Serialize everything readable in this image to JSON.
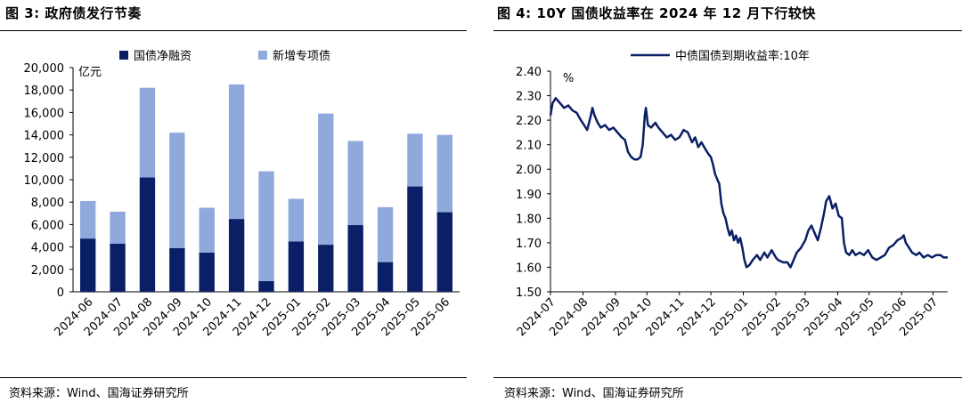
{
  "left_panel": {
    "title": "图 3:  政府债发行节奏",
    "source": "资料来源：Wind、国海证券研究所"
  },
  "right_panel": {
    "title": "图 4:  10Y 国债收益率在 2024 年 12 月下行较快",
    "source": "资料来源：Wind、国海证券研究所"
  },
  "colors": {
    "dark_navy": "#0a1f66",
    "light_blue": "#8fa9dd",
    "line": "#0a1f66"
  },
  "chart_data": [
    {
      "type": "bar",
      "stacked": true,
      "unit_label": "亿元",
      "ylim": [
        0,
        20000
      ],
      "yticks": [
        "0",
        "2,000",
        "4,000",
        "6,000",
        "8,000",
        "10,000",
        "12,000",
        "14,000",
        "16,000",
        "18,000",
        "20,000"
      ],
      "categories": [
        "2024-06",
        "2024-07",
        "2024-08",
        "2024-09",
        "2024-10",
        "2024-11",
        "2024-12",
        "2025-01",
        "2025-02",
        "2025-03",
        "2025-04",
        "2025-05",
        "2025-06"
      ],
      "series": [
        {
          "name": "国债净融资",
          "values": [
            4750,
            4300,
            10200,
            3900,
            3500,
            6500,
            950,
            4500,
            4200,
            5950,
            2650,
            9400,
            7100
          ]
        },
        {
          "name": "新增专项债",
          "values": [
            3350,
            2850,
            8000,
            10300,
            4000,
            12000,
            9800,
            3800,
            11700,
            7500,
            4900,
            4700,
            6900
          ]
        }
      ],
      "legend_position": "top"
    },
    {
      "type": "line",
      "unit_label": "%",
      "ylim": [
        1.5,
        2.4
      ],
      "yticks": [
        "1.50",
        "1.60",
        "1.70",
        "1.80",
        "1.90",
        "2.00",
        "2.10",
        "2.20",
        "2.30",
        "2.40"
      ],
      "xticks": [
        "2024-07",
        "2024-08",
        "2024-09",
        "2024-10",
        "2024-11",
        "2024-12",
        "2025-01",
        "2025-02",
        "2025-03",
        "2025-04",
        "2025-05",
        "2025-06",
        "2025-07"
      ],
      "x_start": "2024-07-01",
      "x_end": "2025-07-15",
      "series": [
        {
          "name": "中债国债到期收益率:10年",
          "points": [
            [
              "2024-07-01",
              2.22
            ],
            [
              "2024-07-03",
              2.27
            ],
            [
              "2024-07-06",
              2.29
            ],
            [
              "2024-07-10",
              2.27
            ],
            [
              "2024-07-14",
              2.25
            ],
            [
              "2024-07-18",
              2.26
            ],
            [
              "2024-07-22",
              2.24
            ],
            [
              "2024-07-26",
              2.23
            ],
            [
              "2024-07-30",
              2.2
            ],
            [
              "2024-08-02",
              2.18
            ],
            [
              "2024-08-05",
              2.16
            ],
            [
              "2024-08-08",
              2.21
            ],
            [
              "2024-08-10",
              2.25
            ],
            [
              "2024-08-12",
              2.22
            ],
            [
              "2024-08-15",
              2.19
            ],
            [
              "2024-08-18",
              2.17
            ],
            [
              "2024-08-22",
              2.18
            ],
            [
              "2024-08-26",
              2.16
            ],
            [
              "2024-08-30",
              2.17
            ],
            [
              "2024-09-03",
              2.15
            ],
            [
              "2024-09-07",
              2.13
            ],
            [
              "2024-09-10",
              2.12
            ],
            [
              "2024-09-13",
              2.07
            ],
            [
              "2024-09-16",
              2.05
            ],
            [
              "2024-09-19",
              2.04
            ],
            [
              "2024-09-22",
              2.04
            ],
            [
              "2024-09-25",
              2.05
            ],
            [
              "2024-09-27",
              2.1
            ],
            [
              "2024-09-29",
              2.22
            ],
            [
              "2024-09-30",
              2.25
            ],
            [
              "2024-10-02",
              2.18
            ],
            [
              "2024-10-05",
              2.17
            ],
            [
              "2024-10-09",
              2.19
            ],
            [
              "2024-10-12",
              2.17
            ],
            [
              "2024-10-16",
              2.15
            ],
            [
              "2024-10-20",
              2.13
            ],
            [
              "2024-10-24",
              2.14
            ],
            [
              "2024-10-28",
              2.12
            ],
            [
              "2024-11-01",
              2.13
            ],
            [
              "2024-11-05",
              2.16
            ],
            [
              "2024-11-09",
              2.15
            ],
            [
              "2024-11-13",
              2.11
            ],
            [
              "2024-11-16",
              2.13
            ],
            [
              "2024-11-19",
              2.09
            ],
            [
              "2024-11-22",
              2.11
            ],
            [
              "2024-11-26",
              2.08
            ],
            [
              "2024-11-29",
              2.06
            ],
            [
              "2024-12-01",
              2.05
            ],
            [
              "2024-12-03",
              2.02
            ],
            [
              "2024-12-05",
              1.98
            ],
            [
              "2024-12-07",
              1.96
            ],
            [
              "2024-12-09",
              1.94
            ],
            [
              "2024-12-11",
              1.86
            ],
            [
              "2024-12-13",
              1.82
            ],
            [
              "2024-12-15",
              1.8
            ],
            [
              "2024-12-17",
              1.76
            ],
            [
              "2024-12-19",
              1.73
            ],
            [
              "2024-12-21",
              1.75
            ],
            [
              "2024-12-23",
              1.71
            ],
            [
              "2024-12-25",
              1.73
            ],
            [
              "2024-12-27",
              1.7
            ],
            [
              "2024-12-29",
              1.72
            ],
            [
              "2024-12-31",
              1.68
            ],
            [
              "2025-01-02",
              1.63
            ],
            [
              "2025-01-04",
              1.6
            ],
            [
              "2025-01-07",
              1.61
            ],
            [
              "2025-01-10",
              1.63
            ],
            [
              "2025-01-14",
              1.65
            ],
            [
              "2025-01-17",
              1.63
            ],
            [
              "2025-01-21",
              1.66
            ],
            [
              "2025-01-24",
              1.64
            ],
            [
              "2025-01-28",
              1.67
            ],
            [
              "2025-02-01",
              1.64
            ],
            [
              "2025-02-03",
              1.63
            ],
            [
              "2025-02-08",
              1.62
            ],
            [
              "2025-02-12",
              1.62
            ],
            [
              "2025-02-15",
              1.6
            ],
            [
              "2025-02-18",
              1.63
            ],
            [
              "2025-02-21",
              1.66
            ],
            [
              "2025-02-25",
              1.68
            ],
            [
              "2025-03-01",
              1.71
            ],
            [
              "2025-03-04",
              1.75
            ],
            [
              "2025-03-07",
              1.77
            ],
            [
              "2025-03-10",
              1.74
            ],
            [
              "2025-03-13",
              1.71
            ],
            [
              "2025-03-16",
              1.76
            ],
            [
              "2025-03-19",
              1.82
            ],
            [
              "2025-03-21",
              1.87
            ],
            [
              "2025-03-24",
              1.89
            ],
            [
              "2025-03-27",
              1.84
            ],
            [
              "2025-03-30",
              1.86
            ],
            [
              "2025-04-02",
              1.81
            ],
            [
              "2025-04-05",
              1.8
            ],
            [
              "2025-04-07",
              1.7
            ],
            [
              "2025-04-09",
              1.66
            ],
            [
              "2025-04-12",
              1.65
            ],
            [
              "2025-04-15",
              1.67
            ],
            [
              "2025-04-18",
              1.65
            ],
            [
              "2025-04-22",
              1.66
            ],
            [
              "2025-04-26",
              1.65
            ],
            [
              "2025-04-30",
              1.67
            ],
            [
              "2025-05-04",
              1.64
            ],
            [
              "2025-05-08",
              1.63
            ],
            [
              "2025-05-12",
              1.64
            ],
            [
              "2025-05-16",
              1.65
            ],
            [
              "2025-05-20",
              1.68
            ],
            [
              "2025-05-24",
              1.69
            ],
            [
              "2025-05-28",
              1.71
            ],
            [
              "2025-06-01",
              1.72
            ],
            [
              "2025-06-03",
              1.73
            ],
            [
              "2025-06-05",
              1.7
            ],
            [
              "2025-06-08",
              1.68
            ],
            [
              "2025-06-11",
              1.66
            ],
            [
              "2025-06-15",
              1.65
            ],
            [
              "2025-06-18",
              1.66
            ],
            [
              "2025-06-22",
              1.64
            ],
            [
              "2025-06-26",
              1.65
            ],
            [
              "2025-06-30",
              1.64
            ],
            [
              "2025-07-04",
              1.65
            ],
            [
              "2025-07-08",
              1.65
            ],
            [
              "2025-07-11",
              1.64
            ],
            [
              "2025-07-15",
              1.64
            ]
          ]
        }
      ],
      "legend_position": "top"
    }
  ]
}
